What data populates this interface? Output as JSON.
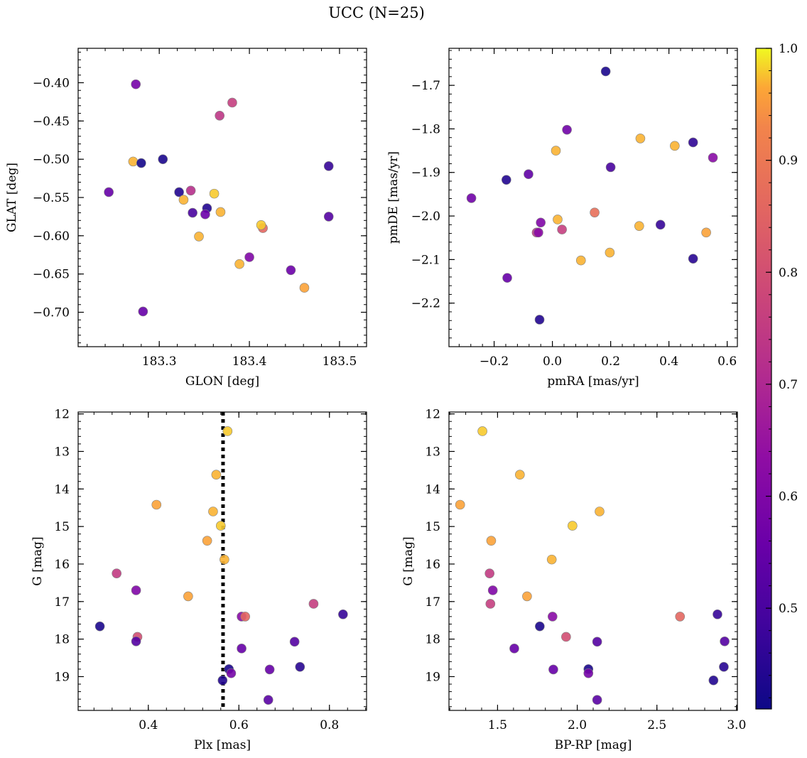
{
  "figure": {
    "suptitle": "UCC (N=25)"
  },
  "colorbar": {
    "colormap": "plasma",
    "vmin": 0.41,
    "vmax": 1.0,
    "ticks": [
      0.5,
      0.6,
      0.7,
      0.8,
      0.9,
      1.0
    ],
    "tick_labels": [
      "0.5",
      "0.6",
      "0.7",
      "0.8",
      "0.9",
      "1.0"
    ]
  },
  "marker_style": {
    "edge_color": "#808080",
    "alpha": 0.9
  },
  "chart_data": [
    {
      "type": "scatter",
      "id": "spatial",
      "xlabel": "GLON [deg]",
      "ylabel": "GLAT [deg]",
      "xlim": [
        183.21,
        183.53
      ],
      "ylim": [
        -0.745,
        -0.355
      ],
      "y_inverted": false,
      "xticks": [
        183.3,
        183.4,
        183.5
      ],
      "xtick_labels": [
        "183.3",
        "183.4",
        "183.5"
      ],
      "yticks": [
        -0.4,
        -0.45,
        -0.5,
        -0.55,
        -0.6,
        -0.65,
        -0.7
      ],
      "ytick_labels": [
        "−0.40",
        "−0.45",
        "−0.50",
        "−0.55",
        "−0.60",
        "−0.65",
        "−0.70"
      ],
      "points": [
        {
          "x": 183.274,
          "y": -0.402,
          "c": 0.58
        },
        {
          "x": 183.381,
          "y": -0.426,
          "c": 0.76
        },
        {
          "x": 183.367,
          "y": -0.443,
          "c": 0.74
        },
        {
          "x": 183.271,
          "y": -0.503,
          "c": 0.97
        },
        {
          "x": 183.28,
          "y": -0.505,
          "c": 0.42
        },
        {
          "x": 183.304,
          "y": -0.5,
          "c": 0.43
        },
        {
          "x": 183.488,
          "y": -0.509,
          "c": 0.47
        },
        {
          "x": 183.244,
          "y": -0.543,
          "c": 0.55
        },
        {
          "x": 183.322,
          "y": -0.543,
          "c": 0.44
        },
        {
          "x": 183.335,
          "y": -0.541,
          "c": 0.72
        },
        {
          "x": 183.361,
          "y": -0.545,
          "c": 0.98
        },
        {
          "x": 183.327,
          "y": -0.553,
          "c": 0.97
        },
        {
          "x": 183.353,
          "y": -0.564,
          "c": 0.44
        },
        {
          "x": 183.337,
          "y": -0.57,
          "c": 0.5
        },
        {
          "x": 183.351,
          "y": -0.572,
          "c": 0.56
        },
        {
          "x": 183.368,
          "y": -0.569,
          "c": 0.97
        },
        {
          "x": 183.488,
          "y": -0.575,
          "c": 0.52
        },
        {
          "x": 183.415,
          "y": -0.59,
          "c": 0.86
        },
        {
          "x": 183.413,
          "y": -0.586,
          "c": 0.98
        },
        {
          "x": 183.344,
          "y": -0.601,
          "c": 0.97
        },
        {
          "x": 183.4,
          "y": -0.628,
          "c": 0.6
        },
        {
          "x": 183.389,
          "y": -0.637,
          "c": 0.97
        },
        {
          "x": 183.446,
          "y": -0.645,
          "c": 0.56
        },
        {
          "x": 183.461,
          "y": -0.668,
          "c": 0.96
        },
        {
          "x": 183.282,
          "y": -0.699,
          "c": 0.55
        }
      ]
    },
    {
      "type": "scatter",
      "id": "proper-motion",
      "xlabel": "pmRA [mas/yr]",
      "ylabel": "pmDE [mas/yr]",
      "xlim": [
        -0.355,
        0.635
      ],
      "ylim": [
        -2.3,
        -1.615
      ],
      "y_inverted": false,
      "xticks": [
        -0.2,
        0.0,
        0.2,
        0.4,
        0.6
      ],
      "xtick_labels": [
        "−0.2",
        "0.0",
        "0.2",
        "0.4",
        "0.6"
      ],
      "yticks": [
        -1.7,
        -1.8,
        -1.9,
        -2.0,
        -2.1,
        -2.2
      ],
      "ytick_labels": [
        "−1.7",
        "−1.8",
        "−1.9",
        "−2.0",
        "−2.1",
        "−2.2"
      ],
      "points": [
        {
          "x": 0.183,
          "y": -1.668,
          "c": 0.43
        },
        {
          "x": 0.05,
          "y": -1.802,
          "c": 0.57
        },
        {
          "x": 0.302,
          "y": -1.822,
          "c": 0.97
        },
        {
          "x": 0.42,
          "y": -1.839,
          "c": 0.97
        },
        {
          "x": 0.483,
          "y": -1.831,
          "c": 0.46
        },
        {
          "x": 0.012,
          "y": -1.85,
          "c": 0.97
        },
        {
          "x": 0.551,
          "y": -1.866,
          "c": 0.62
        },
        {
          "x": 0.2,
          "y": -1.888,
          "c": 0.5
        },
        {
          "x": -0.082,
          "y": -1.904,
          "c": 0.54
        },
        {
          "x": -0.158,
          "y": -1.917,
          "c": 0.44
        },
        {
          "x": -0.278,
          "y": -1.959,
          "c": 0.57
        },
        {
          "x": 0.145,
          "y": -1.992,
          "c": 0.88
        },
        {
          "x": 0.018,
          "y": -2.008,
          "c": 0.97
        },
        {
          "x": -0.04,
          "y": -2.015,
          "c": 0.6
        },
        {
          "x": 0.298,
          "y": -2.023,
          "c": 0.97
        },
        {
          "x": 0.371,
          "y": -2.02,
          "c": 0.47
        },
        {
          "x": 0.033,
          "y": -2.031,
          "c": 0.76
        },
        {
          "x": -0.054,
          "y": -2.038,
          "c": 0.74
        },
        {
          "x": -0.048,
          "y": -2.038,
          "c": 0.62
        },
        {
          "x": 0.528,
          "y": -2.038,
          "c": 0.96
        },
        {
          "x": 0.197,
          "y": -2.084,
          "c": 0.97
        },
        {
          "x": 0.098,
          "y": -2.102,
          "c": 0.97
        },
        {
          "x": 0.483,
          "y": -2.098,
          "c": 0.45
        },
        {
          "x": -0.155,
          "y": -2.142,
          "c": 0.55
        },
        {
          "x": -0.044,
          "y": -2.238,
          "c": 0.44
        }
      ]
    },
    {
      "type": "scatter",
      "id": "g-vs-plx",
      "xlabel": "Plx [mas]",
      "ylabel": "G [mag]",
      "xlim": [
        0.245,
        0.882
      ],
      "ylim": [
        19.9,
        11.95
      ],
      "y_inverted": true,
      "xticks": [
        0.4,
        0.6,
        0.8
      ],
      "xtick_labels": [
        "0.4",
        "0.6",
        "0.8"
      ],
      "yticks": [
        12,
        13,
        14,
        15,
        16,
        17,
        18,
        19
      ],
      "ytick_labels": [
        "12",
        "13",
        "14",
        "15",
        "16",
        "17",
        "18",
        "19"
      ],
      "vline": {
        "x": 0.565,
        "style": "dotted",
        "color": "#000000"
      },
      "points": [
        {
          "x": 0.575,
          "y": 12.46,
          "c": 0.98
        },
        {
          "x": 0.55,
          "y": 13.62,
          "c": 0.97
        },
        {
          "x": 0.418,
          "y": 14.42,
          "c": 0.96
        },
        {
          "x": 0.543,
          "y": 14.6,
          "c": 0.97
        },
        {
          "x": 0.56,
          "y": 14.98,
          "c": 0.98
        },
        {
          "x": 0.53,
          "y": 15.38,
          "c": 0.96
        },
        {
          "x": 0.568,
          "y": 15.88,
          "c": 0.97
        },
        {
          "x": 0.33,
          "y": 16.25,
          "c": 0.75
        },
        {
          "x": 0.373,
          "y": 16.7,
          "c": 0.6
        },
        {
          "x": 0.488,
          "y": 16.86,
          "c": 0.96
        },
        {
          "x": 0.765,
          "y": 17.06,
          "c": 0.76
        },
        {
          "x": 0.83,
          "y": 17.34,
          "c": 0.47
        },
        {
          "x": 0.606,
          "y": 17.4,
          "c": 0.62
        },
        {
          "x": 0.614,
          "y": 17.4,
          "c": 0.86
        },
        {
          "x": 0.293,
          "y": 17.66,
          "c": 0.43
        },
        {
          "x": 0.376,
          "y": 17.94,
          "c": 0.8
        },
        {
          "x": 0.373,
          "y": 18.06,
          "c": 0.52
        },
        {
          "x": 0.723,
          "y": 18.07,
          "c": 0.52
        },
        {
          "x": 0.606,
          "y": 18.25,
          "c": 0.55
        },
        {
          "x": 0.735,
          "y": 18.74,
          "c": 0.45
        },
        {
          "x": 0.578,
          "y": 18.8,
          "c": 0.43
        },
        {
          "x": 0.668,
          "y": 18.81,
          "c": 0.55
        },
        {
          "x": 0.583,
          "y": 18.91,
          "c": 0.58
        },
        {
          "x": 0.564,
          "y": 19.1,
          "c": 0.44
        },
        {
          "x": 0.665,
          "y": 19.62,
          "c": 0.53
        }
      ]
    },
    {
      "type": "scatter",
      "id": "cmd",
      "xlabel": "BP-RP [mag]",
      "ylabel": "G [mag]",
      "xlim": [
        1.195,
        3.005
      ],
      "ylim": [
        19.9,
        11.95
      ],
      "y_inverted": true,
      "xticks": [
        1.5,
        2.0,
        2.5,
        3.0
      ],
      "xtick_labels": [
        "1.5",
        "2.0",
        "2.5",
        "3.0"
      ],
      "yticks": [
        12,
        13,
        14,
        15,
        16,
        17,
        18,
        19
      ],
      "ytick_labels": [
        "12",
        "13",
        "14",
        "15",
        "16",
        "17",
        "18",
        "19"
      ],
      "points": [
        {
          "x": 1.405,
          "y": 12.46,
          "c": 0.98
        },
        {
          "x": 1.64,
          "y": 13.62,
          "c": 0.97
        },
        {
          "x": 1.265,
          "y": 14.42,
          "c": 0.96
        },
        {
          "x": 2.14,
          "y": 14.6,
          "c": 0.97
        },
        {
          "x": 1.97,
          "y": 14.98,
          "c": 0.98
        },
        {
          "x": 1.46,
          "y": 15.38,
          "c": 0.96
        },
        {
          "x": 1.84,
          "y": 15.88,
          "c": 0.97
        },
        {
          "x": 1.45,
          "y": 16.25,
          "c": 0.75
        },
        {
          "x": 1.47,
          "y": 16.7,
          "c": 0.6
        },
        {
          "x": 1.685,
          "y": 16.86,
          "c": 0.96
        },
        {
          "x": 1.455,
          "y": 17.06,
          "c": 0.76
        },
        {
          "x": 2.88,
          "y": 17.34,
          "c": 0.47
        },
        {
          "x": 1.845,
          "y": 17.4,
          "c": 0.62
        },
        {
          "x": 2.645,
          "y": 17.4,
          "c": 0.86
        },
        {
          "x": 1.765,
          "y": 17.66,
          "c": 0.43
        },
        {
          "x": 1.93,
          "y": 17.94,
          "c": 0.8
        },
        {
          "x": 2.925,
          "y": 18.06,
          "c": 0.52
        },
        {
          "x": 2.125,
          "y": 18.07,
          "c": 0.52
        },
        {
          "x": 1.605,
          "y": 18.25,
          "c": 0.55
        },
        {
          "x": 2.92,
          "y": 18.74,
          "c": 0.45
        },
        {
          "x": 2.07,
          "y": 18.8,
          "c": 0.43
        },
        {
          "x": 1.85,
          "y": 18.81,
          "c": 0.55
        },
        {
          "x": 2.07,
          "y": 18.91,
          "c": 0.58
        },
        {
          "x": 2.855,
          "y": 19.1,
          "c": 0.44
        },
        {
          "x": 2.125,
          "y": 19.62,
          "c": 0.53
        }
      ]
    }
  ]
}
